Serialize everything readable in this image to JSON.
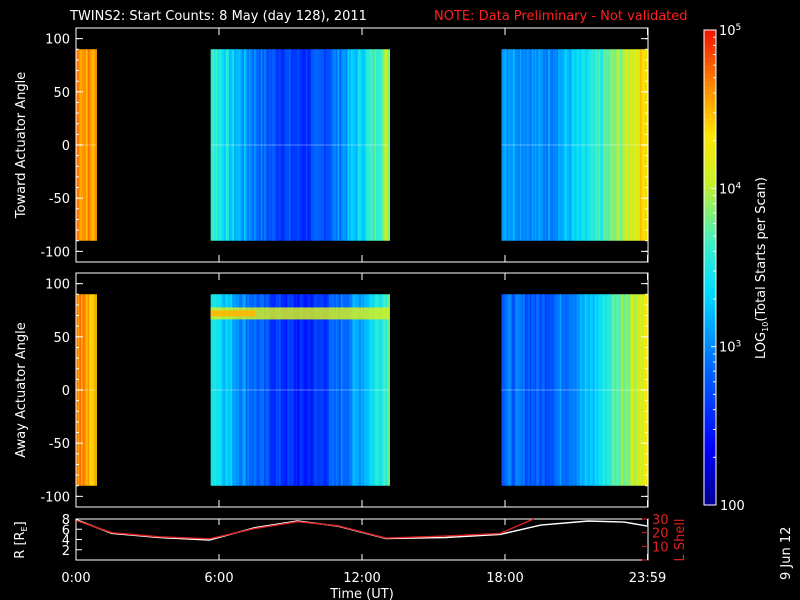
{
  "title": "TWINS2: Start Counts:  8 May (day 128), 2011",
  "note": "NOTE: Data Preliminary - Not validated",
  "date_stamp": "9 Jun 12",
  "colors": {
    "background": "#000000",
    "note": "#ff2020",
    "axis": "#ffffff",
    "r_line": "#ffffff",
    "l_shell_line": "#e02020"
  },
  "colorbar": {
    "label_main": "LOG",
    "label_sub": "10",
    "label_rest": "(Total Starts per Scan)",
    "ticks": [
      {
        "value": 100,
        "text": "100",
        "kind": "plain"
      },
      {
        "value": 1000,
        "base": "10",
        "exp": "3",
        "kind": "pow"
      },
      {
        "value": 10000,
        "base": "10",
        "exp": "4",
        "kind": "pow"
      },
      {
        "value": 100000,
        "base": "10",
        "exp": "5",
        "kind": "pow"
      }
    ],
    "range": [
      100,
      100000
    ],
    "scale": "log"
  },
  "x_axis": {
    "label": "Time (UT)",
    "ticks": [
      {
        "hour": 0,
        "text": "0:00"
      },
      {
        "hour": 6,
        "text": "6:00"
      },
      {
        "hour": 12,
        "text": "12:00"
      },
      {
        "hour": 18,
        "text": "18:00"
      },
      {
        "hour": 23.98,
        "text": "23:59"
      }
    ],
    "range": [
      0,
      24
    ]
  },
  "chart_data": [
    {
      "type": "heatmap",
      "ylabel": "Toward Actuator Angle",
      "y_range": [
        -110,
        110
      ],
      "y_ticks": [
        100,
        50,
        0,
        -50,
        -100
      ],
      "angle_coverage": [
        -90,
        90
      ],
      "data_intervals_hours": [
        [
          0.0,
          0.85
        ],
        [
          5.65,
          13.15
        ],
        [
          17.85,
          24.0
        ]
      ],
      "count_profile": [
        {
          "hour": 0.0,
          "log_counts": 4.7
        },
        {
          "hour": 0.5,
          "log_counts": 4.6
        },
        {
          "hour": 0.85,
          "log_counts": 4.5
        },
        {
          "hour": 5.65,
          "log_counts": 3.7
        },
        {
          "hour": 6.5,
          "log_counts": 3.3
        },
        {
          "hour": 8.0,
          "log_counts": 2.8
        },
        {
          "hour": 9.5,
          "log_counts": 2.6
        },
        {
          "hour": 10.5,
          "log_counts": 2.8
        },
        {
          "hour": 12.0,
          "log_counts": 3.4
        },
        {
          "hour": 13.15,
          "log_counts": 4.0
        },
        {
          "hour": 17.85,
          "log_counts": 3.2
        },
        {
          "hour": 19.5,
          "log_counts": 3.0
        },
        {
          "hour": 21.5,
          "log_counts": 3.4
        },
        {
          "hour": 23.0,
          "log_counts": 4.0
        },
        {
          "hour": 24.0,
          "log_counts": 4.5
        }
      ]
    },
    {
      "type": "heatmap",
      "ylabel": "Away Actuator Angle",
      "y_range": [
        -110,
        110
      ],
      "y_ticks": [
        100,
        50,
        0,
        -50,
        -100
      ],
      "angle_coverage": [
        -90,
        90
      ],
      "data_intervals_hours": [
        [
          0.0,
          0.85
        ],
        [
          5.65,
          13.15
        ],
        [
          17.85,
          24.0
        ]
      ],
      "count_profile": [
        {
          "hour": 0.0,
          "log_counts": 4.7
        },
        {
          "hour": 0.5,
          "log_counts": 4.5
        },
        {
          "hour": 0.85,
          "log_counts": 4.4
        },
        {
          "hour": 5.65,
          "log_counts": 3.6
        },
        {
          "hour": 6.5,
          "log_counts": 3.2
        },
        {
          "hour": 8.0,
          "log_counts": 2.7
        },
        {
          "hour": 9.5,
          "log_counts": 2.5
        },
        {
          "hour": 10.5,
          "log_counts": 2.7
        },
        {
          "hour": 12.0,
          "log_counts": 3.2
        },
        {
          "hour": 13.15,
          "log_counts": 3.8
        },
        {
          "hour": 17.85,
          "log_counts": 2.9
        },
        {
          "hour": 19.5,
          "log_counts": 2.8
        },
        {
          "hour": 21.5,
          "log_counts": 3.2
        },
        {
          "hour": 23.0,
          "log_counts": 3.9
        },
        {
          "hour": 24.0,
          "log_counts": 4.3
        }
      ],
      "enhanced_band": {
        "angle": 72,
        "hours": [
          5.65,
          13.15
        ],
        "log_counts": 4.5
      }
    },
    {
      "type": "line",
      "ylabel_left": "R [R",
      "ylabel_left_sub": "E",
      "ylabel_left_end": "]",
      "ylabel_right": "L Shell",
      "y_left_ticks": [
        2,
        4,
        6,
        8
      ],
      "y_left_range": [
        0,
        8
      ],
      "y_right_ticks": [
        10,
        20,
        30
      ],
      "y_right_range": [
        0,
        30
      ],
      "series": [
        {
          "axis": "left",
          "points": [
            [
              0,
              7.9
            ],
            [
              1.5,
              5.2
            ],
            [
              3.5,
              4.4
            ],
            [
              5.6,
              3.9
            ],
            [
              7.5,
              6.3
            ],
            [
              9.3,
              7.6
            ],
            [
              11.0,
              6.6
            ],
            [
              13.0,
              4.2
            ],
            [
              15.5,
              4.4
            ],
            [
              17.8,
              5.0
            ],
            [
              19.5,
              6.8
            ],
            [
              21.5,
              7.6
            ],
            [
              23.0,
              7.4
            ],
            [
              24.0,
              6.6
            ]
          ]
        },
        {
          "axis": "right",
          "points": [
            [
              0,
              29.0
            ],
            [
              1.5,
              20.0
            ],
            [
              3.5,
              17.0
            ],
            [
              5.6,
              15.5
            ],
            [
              7.5,
              23.0
            ],
            [
              9.3,
              28.0
            ],
            [
              11.0,
              25.0
            ],
            [
              13.0,
              16.0
            ],
            [
              15.5,
              17.5
            ],
            [
              17.8,
              19.5
            ],
            [
              19.2,
              30.0
            ]
          ]
        }
      ]
    }
  ]
}
